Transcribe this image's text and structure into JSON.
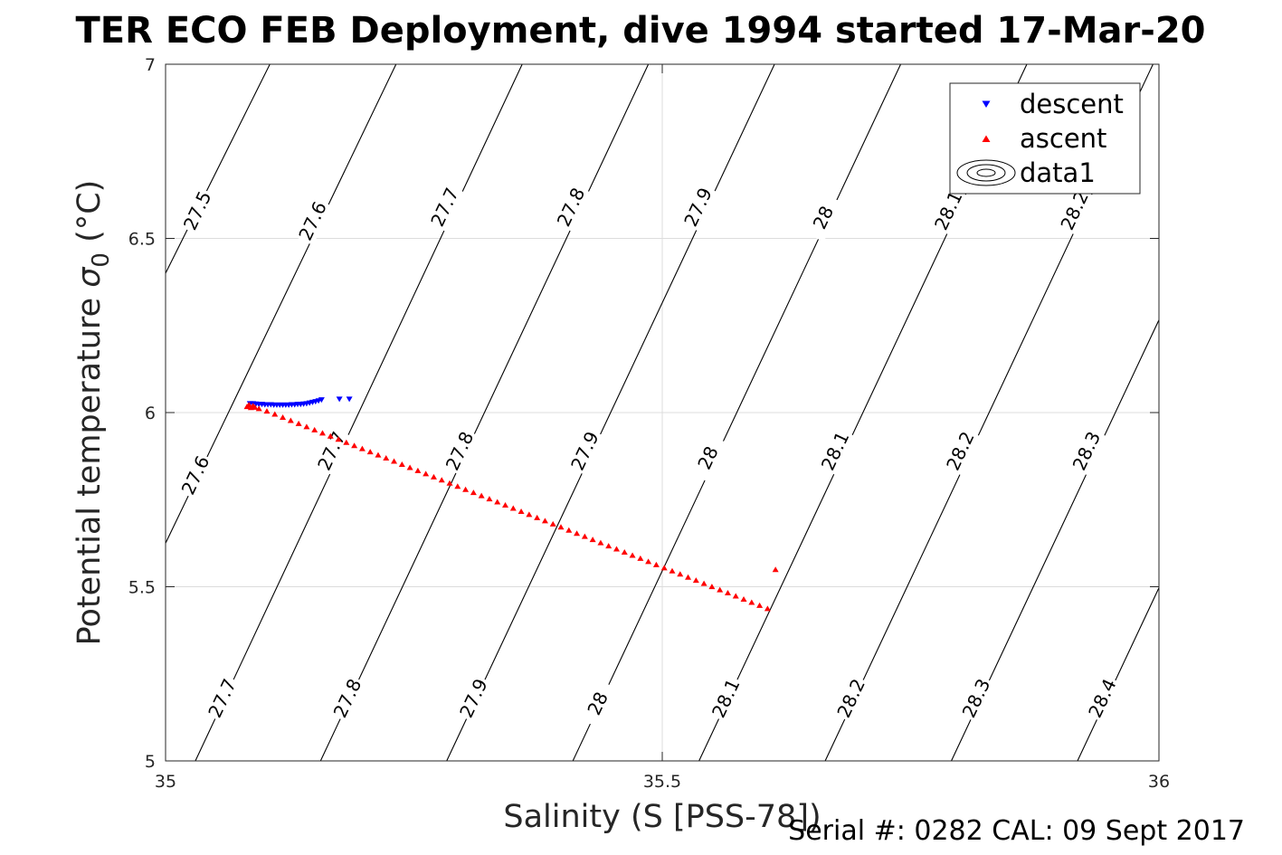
{
  "chart_data": {
    "type": "scatter",
    "title": "TER ECO FEB Deployment, dive 1994 started 17-Mar-20",
    "xlabel": "Salinity (S [PSS-78])",
    "ylabel_main": "Potential temperature ",
    "ylabel_symbol": "σ",
    "ylabel_sub": "0",
    "ylabel_unit": " (°C)",
    "xlim": [
      35,
      36
    ],
    "ylim": [
      5,
      7
    ],
    "x_ticks": [
      "35",
      "35.5",
      "36"
    ],
    "y_ticks": [
      "5",
      "5.5",
      "6",
      "6.5",
      "7"
    ],
    "grid": true,
    "legend_position": "top-right",
    "legend": [
      "descent",
      "ascent",
      "data1"
    ],
    "footer": "Serial #: 0282  CAL: 09 Sept 2017",
    "series": [
      {
        "name": "descent",
        "marker": "triangle-down",
        "color": "#0000ff",
        "x": [
          35.085,
          35.088,
          35.091,
          35.094,
          35.097,
          35.1,
          35.103,
          35.106,
          35.109,
          35.112,
          35.115,
          35.118,
          35.121,
          35.124,
          35.127,
          35.13,
          35.133,
          35.136,
          35.139,
          35.142,
          35.145,
          35.148,
          35.151,
          35.154,
          35.157,
          35.175,
          35.185
        ],
        "y": [
          6.025,
          6.025,
          6.024,
          6.023,
          6.023,
          6.022,
          6.022,
          6.022,
          6.021,
          6.021,
          6.021,
          6.021,
          6.021,
          6.021,
          6.022,
          6.022,
          6.023,
          6.023,
          6.024,
          6.025,
          6.027,
          6.029,
          6.031,
          6.033,
          6.036,
          6.038,
          6.038
        ]
      },
      {
        "name": "ascent",
        "marker": "triangle-up",
        "color": "#ff0000",
        "x": [
          35.082,
          35.084,
          35.086,
          35.088,
          35.09,
          35.094,
          35.102,
          35.11,
          35.118,
          35.126,
          35.134,
          35.142,
          35.15,
          35.158,
          35.166,
          35.174,
          35.182,
          35.19,
          35.198,
          35.206,
          35.214,
          35.222,
          35.23,
          35.238,
          35.246,
          35.254,
          35.262,
          35.27,
          35.278,
          35.286,
          35.294,
          35.302,
          35.31,
          35.318,
          35.326,
          35.334,
          35.342,
          35.35,
          35.358,
          35.366,
          35.374,
          35.382,
          35.39,
          35.398,
          35.406,
          35.414,
          35.422,
          35.43,
          35.438,
          35.446,
          35.454,
          35.462,
          35.47,
          35.478,
          35.486,
          35.494,
          35.502,
          35.51,
          35.518,
          35.526,
          35.534,
          35.542,
          35.55,
          35.558,
          35.566,
          35.574,
          35.582,
          35.59,
          35.598,
          35.606,
          35.614
        ],
        "y": [
          6.018,
          6.023,
          6.015,
          6.02,
          6.016,
          6.012,
          6.005,
          5.996,
          5.987,
          5.978,
          5.969,
          5.96,
          5.951,
          5.942,
          5.933,
          5.924,
          5.915,
          5.906,
          5.897,
          5.888,
          5.879,
          5.87,
          5.861,
          5.852,
          5.843,
          5.834,
          5.825,
          5.816,
          5.807,
          5.798,
          5.789,
          5.78,
          5.771,
          5.762,
          5.753,
          5.744,
          5.735,
          5.726,
          5.717,
          5.708,
          5.699,
          5.69,
          5.681,
          5.672,
          5.663,
          5.654,
          5.645,
          5.636,
          5.627,
          5.618,
          5.609,
          5.6,
          5.591,
          5.582,
          5.573,
          5.564,
          5.555,
          5.546,
          5.537,
          5.528,
          5.519,
          5.51,
          5.501,
          5.492,
          5.483,
          5.474,
          5.465,
          5.456,
          5.447,
          5.438,
          5.55
        ]
      }
    ],
    "contours": [
      {
        "label": "27.5",
        "x": [
          35.0,
          35.105
        ],
        "y": [
          6.4,
          7.0
        ]
      },
      {
        "label": "27.6",
        "x": [
          35.0,
          35.232
        ],
        "y": [
          5.625,
          7.0
        ]
      },
      {
        "label": "27.7",
        "x": [
          35.03,
          35.359
        ],
        "y": [
          5.0,
          7.0
        ]
      },
      {
        "label": "27.8",
        "x": [
          35.156,
          35.486
        ],
        "y": [
          5.0,
          7.0
        ]
      },
      {
        "label": "27.9",
        "x": [
          35.283,
          35.613
        ],
        "y": [
          5.0,
          7.0
        ]
      },
      {
        "label": "28",
        "x": [
          35.41,
          35.74
        ],
        "y": [
          5.0,
          7.0
        ]
      },
      {
        "label": "28.1",
        "x": [
          35.537,
          35.867
        ],
        "y": [
          5.0,
          7.0
        ]
      },
      {
        "label": "28.2",
        "x": [
          35.664,
          35.994
        ],
        "y": [
          5.0,
          7.0
        ]
      },
      {
        "label": "28.3",
        "x": [
          35.791,
          36.0
        ],
        "y": [
          5.0,
          6.266
        ]
      },
      {
        "label": "28.4",
        "x": [
          35.918,
          36.0
        ],
        "y": [
          5.0,
          5.497
        ]
      }
    ],
    "contour_labels": [
      {
        "text": "27.5",
        "x": 35.032,
        "y": 6.58
      },
      {
        "text": "27.6",
        "x": 35.148,
        "y": 6.55
      },
      {
        "text": "27.7",
        "x": 35.281,
        "y": 6.59
      },
      {
        "text": "27.8",
        "x": 35.408,
        "y": 6.59
      },
      {
        "text": "27.9",
        "x": 35.536,
        "y": 6.59
      },
      {
        "text": "28",
        "x": 35.662,
        "y": 6.56
      },
      {
        "text": "28.1",
        "x": 35.788,
        "y": 6.58
      },
      {
        "text": "28.2",
        "x": 35.915,
        "y": 6.58
      },
      {
        "text": "27.6",
        "x": 35.03,
        "y": 5.82
      },
      {
        "text": "27.7",
        "x": 35.167,
        "y": 5.89
      },
      {
        "text": "27.8",
        "x": 35.296,
        "y": 5.89
      },
      {
        "text": "27.9",
        "x": 35.422,
        "y": 5.89
      },
      {
        "text": "28",
        "x": 35.546,
        "y": 5.87
      },
      {
        "text": "28.1",
        "x": 35.674,
        "y": 5.89
      },
      {
        "text": "28.2",
        "x": 35.8,
        "y": 5.89
      },
      {
        "text": "28.3",
        "x": 35.927,
        "y": 5.89
      },
      {
        "text": "27.7",
        "x": 35.057,
        "y": 5.18
      },
      {
        "text": "27.8",
        "x": 35.183,
        "y": 5.18
      },
      {
        "text": "27.9",
        "x": 35.31,
        "y": 5.18
      },
      {
        "text": "28",
        "x": 35.435,
        "y": 5.165
      },
      {
        "text": "28.1",
        "x": 35.564,
        "y": 5.18
      },
      {
        "text": "28.2",
        "x": 35.69,
        "y": 5.18
      },
      {
        "text": "28.3",
        "x": 35.816,
        "y": 5.18
      },
      {
        "text": "28.4",
        "x": 35.943,
        "y": 5.18
      }
    ]
  }
}
